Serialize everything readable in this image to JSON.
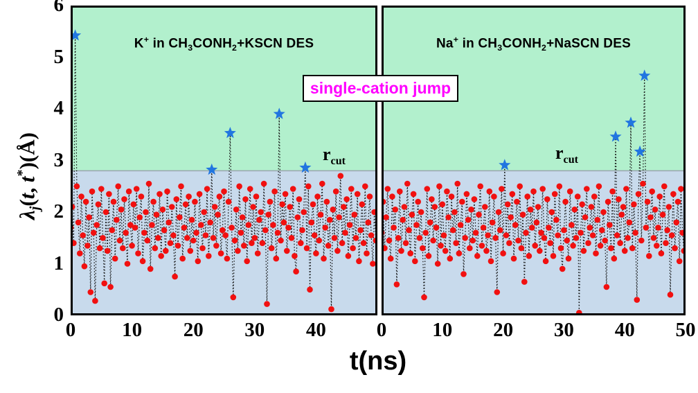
{
  "figure": {
    "xlabel": "t(ns)",
    "ylabel_plain": "λ_j(t, t*)(Å)",
    "ylabel_segments": [
      [
        "λ",
        "i"
      ],
      [
        "j",
        "isub"
      ],
      [
        "(",
        ""
      ],
      [
        "t",
        "i"
      ],
      [
        ", ",
        ""
      ],
      [
        "t",
        "i"
      ],
      [
        "*",
        "sup"
      ],
      [
        ")(Å)",
        ""
      ]
    ],
    "annotation": {
      "text": "single-cation jump",
      "color": "#ff00ff"
    },
    "rcut_label_segments": [
      [
        "r",
        ""
      ],
      [
        "cut",
        "sub"
      ]
    ],
    "colors": {
      "above_cutoff_region": "#b2f0cd",
      "below_cutoff_region": "#c8daec",
      "cutoff_line": "#9aa4ae",
      "point": "#f11010",
      "star": "#2176e0",
      "stem_line": "#111111",
      "annotation_text": "#ff00ff",
      "panel_border": "#000000"
    }
  },
  "chart_data": [
    {
      "type": "scatter",
      "title_plain": "K+ in CH3CONH2+KSCN DES",
      "title_segments": [
        [
          "K",
          ""
        ],
        [
          "+",
          "sup"
        ],
        [
          " in CH",
          ""
        ],
        [
          "3",
          "sub"
        ],
        [
          "CONH",
          ""
        ],
        [
          "2",
          "sub"
        ],
        [
          "+KSCN DES",
          ""
        ]
      ],
      "xlabel": "t(ns)",
      "ylabel": "lambda_j(t,t*) (Angstrom)",
      "xlim": [
        0,
        50
      ],
      "ylim": [
        0,
        6
      ],
      "x_ticks": [
        0,
        10,
        20,
        30,
        40
      ],
      "y_ticks": [
        0,
        1,
        2,
        3,
        4,
        5,
        6
      ],
      "r_cut": 2.8,
      "marker_rule": "red circle if value <= r_cut, blue star if value > r_cut",
      "dt": 0.25,
      "values": [
        1.7,
        2.1,
        1.4,
        5.42,
        2.5,
        1.8,
        1.2,
        2.3,
        1.55,
        0.95,
        2.2,
        1.35,
        1.9,
        0.45,
        2.4,
        1.6,
        0.28,
        1.75,
        2.15,
        1.3,
        2.45,
        1.5,
        0.62,
        2.0,
        1.25,
        2.35,
        0.55,
        1.65,
        2.2,
        1.1,
        1.85,
        2.5,
        1.45,
        2.05,
        1.3,
        2.25,
        1.6,
        1.0,
        2.4,
        1.75,
        1.35,
        2.15,
        1.7,
        2.45,
        1.2,
        1.9,
        2.3,
        1.05,
        1.6,
        2.0,
        1.45,
        2.55,
        0.9,
        1.75,
        2.2,
        1.3,
        1.95,
        1.5,
        2.35,
        1.15,
        2.05,
        1.65,
        1.25,
        2.4,
        1.8,
        1.4,
        2.1,
        1.55,
        0.75,
        2.25,
        1.35,
        1.9,
        2.5,
        1.1,
        1.7,
        2.15,
        1.5,
        2.3,
        1.25,
        1.85,
        1.45,
        2.2,
        1.6,
        1.05,
        2.35,
        1.75,
        1.3,
        2.0,
        1.55,
        2.45,
        1.15,
        1.8,
        2.82,
        1.5,
        2.1,
        1.35,
        1.95,
        2.3,
        1.2,
        1.65,
        2.4,
        1.55,
        1.1,
        2.2,
        3.53,
        1.7,
        0.35,
        1.45,
        2.05,
        1.25,
        2.5,
        1.6,
        1.9,
        1.35,
        2.25,
        1.05,
        1.75,
        2.45,
        1.4,
        2.1,
        1.5,
        2.3,
        1.2,
        1.85,
        2.0,
        1.4,
        2.55,
        1.65,
        0.22,
        1.95,
        2.2,
        1.3,
        1.75,
        2.4,
        1.1,
        1.6,
        3.9,
        1.45,
        2.15,
        1.8,
        2.35,
        1.25,
        1.7,
        2.1,
        1.5,
        2.45,
        1.15,
        0.85,
        1.9,
        2.25,
        1.4,
        1.65,
        2.0,
        2.86,
        1.3,
        2.5,
        0.5,
        1.8,
        2.15,
        1.55,
        1.2,
        2.3,
        1.45,
        1.95,
        2.55,
        1.1,
        1.7,
        2.2,
        1.35,
        1.85,
        0.12,
        2.05,
        1.5,
        2.4,
        1.25,
        1.9,
        2.7,
        1.4,
        2.1,
        1.6,
        2.25,
        1.15,
        1.75,
        2.45,
        1.3,
        1.95,
        1.5,
        2.35,
        1.05,
        1.65,
        2.15,
        1.4,
        2.5,
        1.2,
        1.8,
        2.3,
        1.55,
        1.0,
        2.0,
        1.45
      ],
      "jump_events": [
        [
          0.75,
          5.42
        ],
        [
          23.0,
          2.82
        ],
        [
          26.0,
          3.53
        ],
        [
          34.0,
          3.9
        ],
        [
          38.25,
          2.86
        ]
      ],
      "rcut_label_pos": {
        "t": 42.0,
        "lambda": 3.1
      }
    },
    {
      "type": "scatter",
      "title_plain": "Na+ in CH3CONH2+NaSCN DES",
      "title_segments": [
        [
          "Na",
          ""
        ],
        [
          "+",
          "sup"
        ],
        [
          " in CH",
          ""
        ],
        [
          "3",
          "sub"
        ],
        [
          "CONH",
          ""
        ],
        [
          "2",
          "sub"
        ],
        [
          "+NaSCN DES",
          ""
        ]
      ],
      "xlabel": "t(ns)",
      "ylabel": "lambda_j(t,t*) (Angstrom)",
      "xlim": [
        0,
        50
      ],
      "ylim": [
        0,
        6
      ],
      "x_ticks": [
        0,
        10,
        20,
        30,
        40,
        50
      ],
      "y_ticks": [
        0,
        1,
        2,
        3,
        4,
        5,
        6
      ],
      "r_cut": 2.8,
      "marker_rule": "red circle if value <= r_cut, blue star if value > r_cut",
      "dt": 0.25,
      "values": [
        1.6,
        2.2,
        1.3,
        1.9,
        2.45,
        1.45,
        1.1,
        2.3,
        1.7,
        2.05,
        0.6,
        1.5,
        2.4,
        1.25,
        1.85,
        2.1,
        1.4,
        2.55,
        1.65,
        1.2,
        1.95,
        2.35,
        1.05,
        1.75,
        2.2,
        1.5,
        2.0,
        1.3,
        0.35,
        1.6,
        2.45,
        1.15,
        1.8,
        2.25,
        1.45,
        2.1,
        1.7,
        1.0,
        2.5,
        1.35,
        2.15,
        1.55,
        1.25,
        2.4,
        1.9,
        1.1,
        2.3,
        1.65,
        2.0,
        1.4,
        2.55,
        1.2,
        1.75,
        2.2,
        0.8,
        1.5,
        2.35,
        1.85,
        1.3,
        2.05,
        1.45,
        2.25,
        1.6,
        1.15,
        1.95,
        2.5,
        1.35,
        1.7,
        2.1,
        1.25,
        1.55,
        2.4,
        1.05,
        1.8,
        2.3,
        1.5,
        0.45,
        2.0,
        1.65,
        2.45,
        1.2,
        2.91,
        1.55,
        2.15,
        1.4,
        1.9,
        2.35,
        1.1,
        1.75,
        2.2,
        1.45,
        2.5,
        1.3,
        1.95,
        0.65,
        1.6,
        2.3,
        1.15,
        2.05,
        1.7,
        2.4,
        1.35,
        1.8,
        2.1,
        1.25,
        1.6,
        2.45,
        1.5,
        1.05,
        2.25,
        1.7,
        1.4,
        2.0,
        1.15,
        2.35,
        1.85,
        1.55,
        2.5,
        1.3,
        0.9,
        1.65,
        2.2,
        1.45,
        1.1,
        2.4,
        1.75,
        1.35,
        2.05,
        1.5,
        2.3,
        0.05,
        1.6,
        2.15,
        1.25,
        1.9,
        2.45,
        1.4,
        1.7,
        2.1,
        1.55,
        2.3,
        1.2,
        1.85,
        2.5,
        1.35,
        1.65,
        2.0,
        1.45,
        0.55,
        2.2,
        1.75,
        1.3,
        2.4,
        1.1,
        3.46,
        1.55,
        2.25,
        1.4,
        1.95,
        2.1,
        1.25,
        2.45,
        1.5,
        1.8,
        3.73,
        1.3,
        2.15,
        1.6,
        0.3,
        2.35,
        3.17,
        1.45,
        2.55,
        4.64,
        1.7,
        2.2,
        1.15,
        1.9,
        2.4,
        1.5,
        2.05,
        1.35,
        1.7,
        2.3,
        1.2,
        1.95,
        2.5,
        1.4,
        1.65,
        2.1,
        0.4,
        1.55,
        2.35,
        1.3,
        1.8,
        2.2,
        1.05,
        2.45,
        1.6,
        1.25
      ],
      "jump_events": [
        [
          20.25,
          2.91
        ],
        [
          38.5,
          3.46
        ],
        [
          41.0,
          3.73
        ],
        [
          42.5,
          3.17
        ],
        [
          43.25,
          4.64
        ]
      ],
      "rcut_label_pos": {
        "t": 29.0,
        "lambda": 3.05
      }
    }
  ]
}
